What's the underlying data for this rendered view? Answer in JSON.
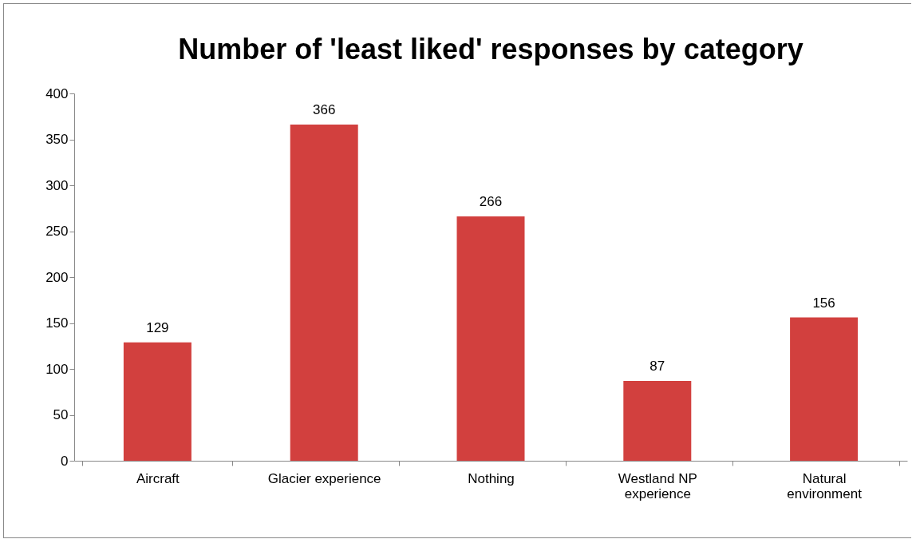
{
  "chart_data": {
    "type": "bar",
    "title": "Number of 'least liked' responses by category",
    "categories": [
      "Aircraft",
      "Glacier experience",
      "Nothing",
      "Westland NP experience",
      "Natural environment"
    ],
    "values": [
      129,
      366,
      266,
      87,
      156
    ],
    "color": "#d2403e",
    "ylim": [
      0,
      400
    ],
    "yticks": [
      0,
      50,
      100,
      150,
      200,
      250,
      300,
      350,
      400
    ],
    "grid": false,
    "data_labels": true
  }
}
